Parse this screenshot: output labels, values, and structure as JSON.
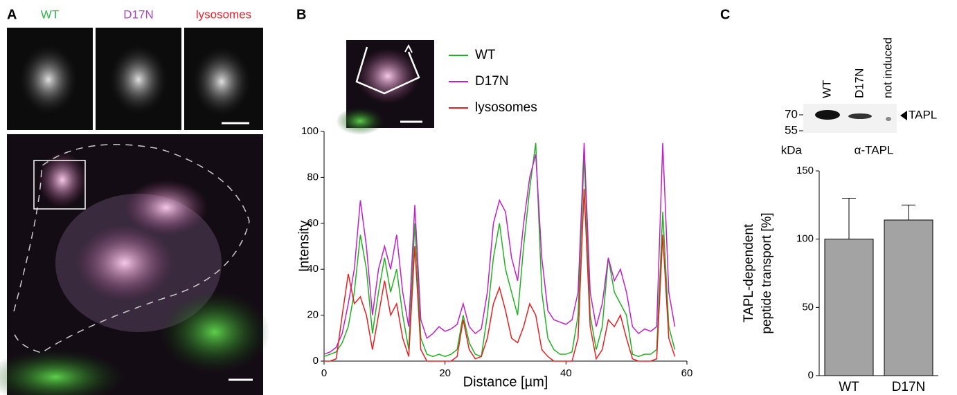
{
  "panels": {
    "a": {
      "letter": "A",
      "channels": [
        {
          "name": "WT",
          "color": "#2db84a"
        },
        {
          "name": "D17N",
          "color": "#a845c0"
        },
        {
          "name": "lysosomes",
          "color": "#e8262e"
        }
      ]
    },
    "b": {
      "letter": "B"
    },
    "c": {
      "letter": "C",
      "lanes": [
        "WT",
        "D17N",
        "not induced"
      ],
      "markers": [
        70,
        55
      ],
      "unit": "kDa",
      "antibody": "α-TAPL",
      "band": "TAPL"
    }
  },
  "chart_data": [
    {
      "type": "line",
      "xlabel": "Distance [µm]",
      "ylabel": "Intensity",
      "x": [
        0,
        1,
        2,
        3,
        4,
        5,
        6,
        7,
        8,
        9,
        10,
        11,
        12,
        13,
        14,
        15,
        16,
        17,
        18,
        19,
        20,
        21,
        22,
        23,
        24,
        25,
        26,
        27,
        28,
        29,
        30,
        31,
        32,
        33,
        34,
        35,
        36,
        37,
        38,
        39,
        40,
        41,
        42,
        43,
        44,
        45,
        46,
        47,
        48,
        49,
        50,
        51,
        52,
        53,
        54,
        55,
        56,
        57,
        58
      ],
      "xlim": [
        0,
        60
      ],
      "xticks": [
        0,
        20,
        40,
        60
      ],
      "ylim": [
        0,
        100
      ],
      "yticks": [
        0,
        20,
        40,
        60,
        80,
        100
      ],
      "series": [
        {
          "name": "WT",
          "color": "#22b022",
          "values": [
            2,
            3,
            4,
            8,
            15,
            30,
            55,
            40,
            12,
            30,
            45,
            30,
            40,
            20,
            5,
            60,
            10,
            3,
            2,
            3,
            2,
            3,
            5,
            20,
            8,
            3,
            2,
            20,
            45,
            60,
            40,
            30,
            20,
            50,
            75,
            95,
            30,
            10,
            5,
            3,
            3,
            4,
            20,
            90,
            20,
            5,
            15,
            45,
            30,
            25,
            20,
            3,
            2,
            3,
            3,
            5,
            65,
            15,
            5
          ]
        },
        {
          "name": "D17N",
          "color": "#c020c8",
          "values": [
            3,
            4,
            6,
            12,
            25,
            40,
            70,
            50,
            20,
            40,
            50,
            40,
            55,
            30,
            15,
            68,
            18,
            10,
            12,
            15,
            13,
            14,
            16,
            25,
            15,
            12,
            14,
            30,
            60,
            70,
            65,
            45,
            35,
            60,
            80,
            90,
            45,
            22,
            18,
            17,
            16,
            18,
            30,
            95,
            30,
            15,
            25,
            45,
            35,
            40,
            30,
            15,
            12,
            14,
            13,
            15,
            95,
            30,
            15
          ]
        },
        {
          "name": "lysosomes",
          "color": "#e82020",
          "values": [
            0,
            0,
            1,
            20,
            38,
            25,
            28,
            20,
            5,
            20,
            35,
            20,
            25,
            10,
            2,
            50,
            5,
            0,
            0,
            0,
            0,
            0,
            2,
            18,
            5,
            1,
            2,
            10,
            25,
            32,
            22,
            10,
            8,
            15,
            25,
            20,
            5,
            2,
            0,
            0,
            0,
            0,
            10,
            75,
            15,
            1,
            5,
            18,
            15,
            20,
            10,
            1,
            0,
            0,
            0,
            1,
            55,
            10,
            2
          ]
        }
      ]
    },
    {
      "type": "bar",
      "ylabel": [
        "TAPL-dependent",
        "peptide transport [%]"
      ],
      "categories": [
        "WT",
        "D17N"
      ],
      "values": [
        100,
        114
      ],
      "errors": [
        30,
        11
      ],
      "color": "#a3a3a3",
      "ylim": [
        0,
        150
      ],
      "yticks": [
        0,
        50,
        100,
        150
      ]
    }
  ]
}
